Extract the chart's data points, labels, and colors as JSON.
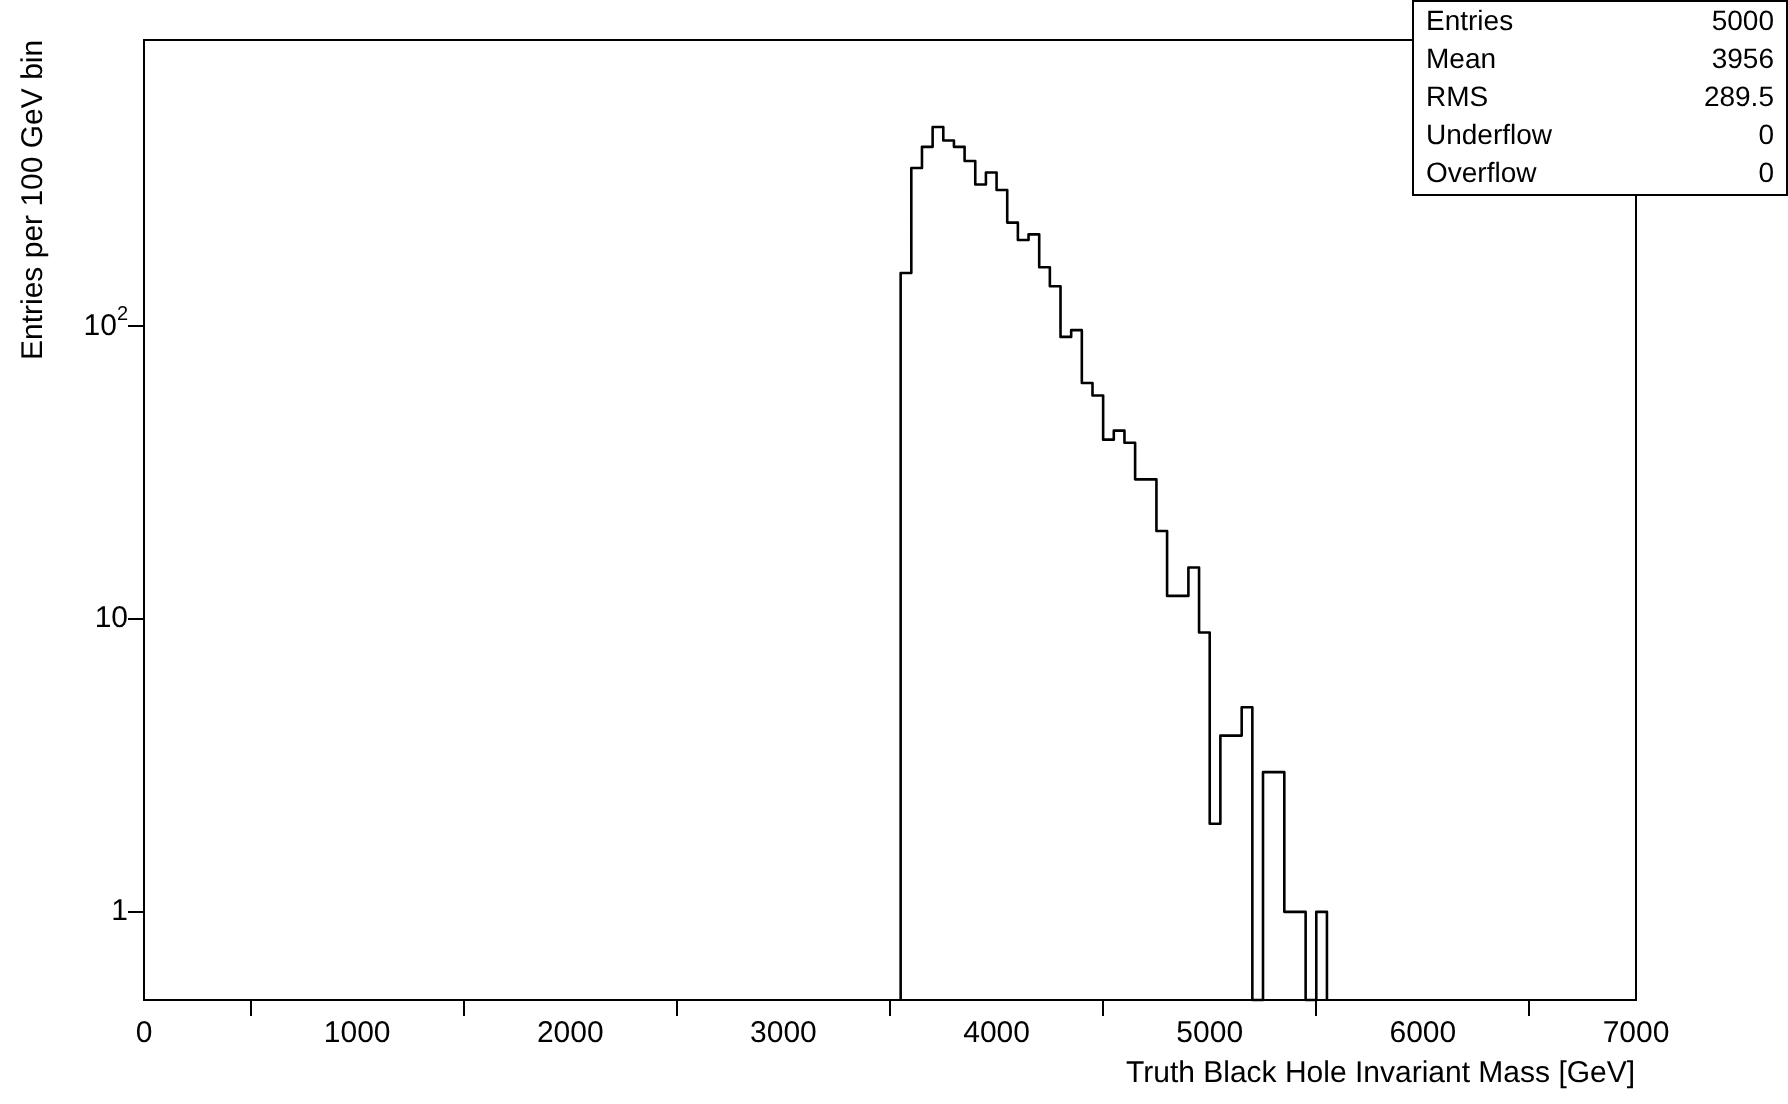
{
  "chart_data": {
    "type": "histogram",
    "xlabel": "Truth Black Hole Invariant Mass [GeV]",
    "ylabel": "Entries per 100 GeV bin",
    "bins": [
      3550,
      3600,
      3650,
      3700,
      3750,
      3800,
      3850,
      3900,
      3950,
      4000,
      4050,
      4100,
      4150,
      4200,
      4250,
      4300,
      4350,
      4400,
      4450,
      4500,
      4550,
      4600,
      4650,
      4700,
      4750,
      4800,
      4850,
      4900,
      4950,
      5000,
      5050,
      5100,
      5150,
      5200,
      5250,
      5300,
      5350,
      5400,
      5450,
      5500,
      5550
    ],
    "values": [
      152,
      347,
      410,
      479,
      431,
      410,
      367,
      305,
      335,
      292,
      226,
      197,
      206,
      159,
      137,
      92,
      97,
      64,
      58,
      41,
      44,
      40,
      30,
      30,
      20,
      12,
      12,
      15,
      9,
      2,
      4,
      4,
      5,
      null,
      3,
      3,
      1,
      1,
      null,
      1
    ],
    "color": "#000000",
    "log": "y",
    "xlim": [
      0,
      7000
    ],
    "xticks": [
      0,
      1000,
      2000,
      3000,
      4000,
      5000,
      6000,
      7000
    ],
    "ylim": [
      0.5,
      950
    ],
    "yticks": [
      1,
      10,
      {
        "value": 100,
        "label": "10$^{2}$"
      }
    ],
    "grid": false,
    "legend": false,
    "annotations": [
      "Entries 5000",
      "Mean 3956",
      "RMS 289.5",
      "Underflow 0",
      "Overflow 0"
    ]
  }
}
